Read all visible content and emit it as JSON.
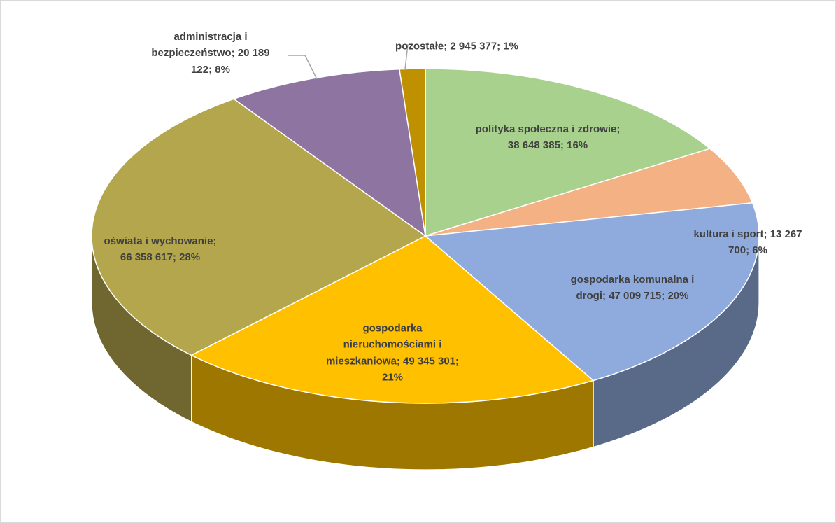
{
  "chart_data": {
    "type": "pie",
    "three_d": true,
    "categories": [
      "polityka społeczna i zdrowie;",
      "kultura i sport;",
      "gospodarka komunalna i drogi;",
      "gospodarka nieruchomościami i mieszkaniowa;",
      "oświata i wychowanie;",
      "administracja i bezpieczeństwo;",
      "pozostałe;"
    ],
    "values": [
      38648385,
      13267700,
      47009715,
      49345301,
      66358617,
      20189122,
      2945377
    ],
    "value_labels": [
      "38 648 385;",
      "13 267 700;",
      "47 009 715;",
      "49 345 301;",
      "66 358 617;",
      "20 189 122;",
      "2 945 377;"
    ],
    "percents": [
      16,
      6,
      20,
      21,
      28,
      8,
      1
    ],
    "percent_labels": [
      "16%",
      "6%",
      "20%",
      "21%",
      "28%",
      "8%",
      "1%"
    ],
    "colors": [
      "#a9d18e",
      "#f4b183",
      "#8faadc",
      "#ffc000",
      "#b3a64c",
      "#8e74a0",
      "#bf9000"
    ]
  }
}
